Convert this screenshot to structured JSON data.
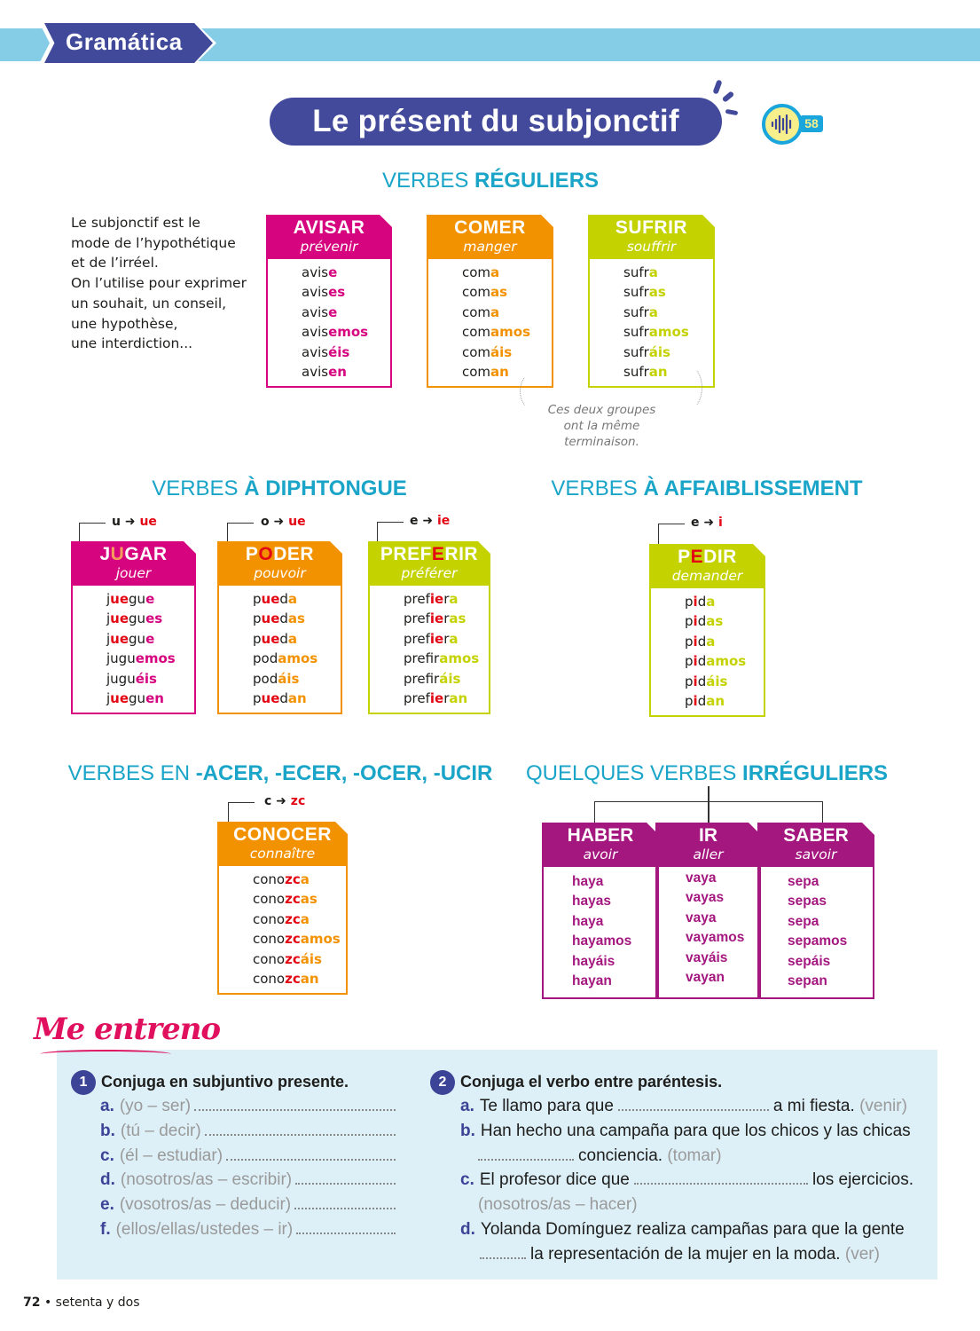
{
  "header": {
    "section_tab": "Gramática",
    "title": "Le présent du subjonctif",
    "audio_track": "58",
    "audio_icon": "audio-wave-icon"
  },
  "colors": {
    "magenta": "#d6047f",
    "orange": "#f39200",
    "lime": "#c4d200",
    "red": "#e30613",
    "purple": "#a3177f",
    "teal": "#1aa5c8",
    "navy": "#434a9b"
  },
  "regular": {
    "heading_light": "VERBES ",
    "heading_bold": "RÉGULIERS",
    "intro": [
      "Le subjonctif est le",
      "mode de l’hypothétique",
      "et de l’irréel.",
      "On l’utilise pour exprimer",
      "un souhait, un conseil,",
      "une hypothèse,",
      "une interdiction..."
    ],
    "note": [
      "Ces deux groupes",
      "ont la même terminaison."
    ],
    "cards": [
      {
        "color": "#d6047f",
        "title": [
          [
            "AVISAR",
            "w"
          ]
        ],
        "translation": "prévenir",
        "forms": [
          [
            [
              "avis",
              "k"
            ],
            [
              "e",
              "c"
            ]
          ],
          [
            [
              "avis",
              "k"
            ],
            [
              "es",
              "c"
            ]
          ],
          [
            [
              "avis",
              "k"
            ],
            [
              "e",
              "c"
            ]
          ],
          [
            [
              "avis",
              "k"
            ],
            [
              "emos",
              "c"
            ]
          ],
          [
            [
              "avis",
              "k"
            ],
            [
              "éis",
              "c"
            ]
          ],
          [
            [
              "avis",
              "k"
            ],
            [
              "en",
              "c"
            ]
          ]
        ]
      },
      {
        "color": "#f39200",
        "title": [
          [
            "COMER",
            "w"
          ]
        ],
        "translation": "manger",
        "forms": [
          [
            [
              "com",
              "k"
            ],
            [
              "a",
              "c"
            ]
          ],
          [
            [
              "com",
              "k"
            ],
            [
              "as",
              "c"
            ]
          ],
          [
            [
              "com",
              "k"
            ],
            [
              "a",
              "c"
            ]
          ],
          [
            [
              "com",
              "k"
            ],
            [
              "amos",
              "c"
            ]
          ],
          [
            [
              "com",
              "k"
            ],
            [
              "áis",
              "c"
            ]
          ],
          [
            [
              "com",
              "k"
            ],
            [
              "an",
              "c"
            ]
          ]
        ]
      },
      {
        "color": "#c4d200",
        "title": [
          [
            "SUFRIR",
            "w"
          ]
        ],
        "translation": "souffrir",
        "forms": [
          [
            [
              "sufr",
              "k"
            ],
            [
              "a",
              "c"
            ]
          ],
          [
            [
              "sufr",
              "k"
            ],
            [
              "as",
              "c"
            ]
          ],
          [
            [
              "sufr",
              "k"
            ],
            [
              "a",
              "c"
            ]
          ],
          [
            [
              "sufr",
              "k"
            ],
            [
              "amos",
              "c"
            ]
          ],
          [
            [
              "sufr",
              "k"
            ],
            [
              "áis",
              "c"
            ]
          ],
          [
            [
              "sufr",
              "k"
            ],
            [
              "an",
              "c"
            ]
          ]
        ]
      }
    ]
  },
  "diphthong": {
    "heading_light": "VERBES ",
    "heading_bold": "À DIPHTONGUE",
    "cards": [
      {
        "color": "#d6047f",
        "rule_from": "u",
        "rule_to": "ue",
        "title": [
          [
            "J",
            "w"
          ],
          [
            "U",
            "o"
          ],
          [
            "GAR",
            "w"
          ]
        ],
        "translation": "jouer",
        "forms": [
          [
            [
              "j",
              "k"
            ],
            [
              "ue",
              "r"
            ],
            [
              "gu",
              "k"
            ],
            [
              "e",
              "c"
            ]
          ],
          [
            [
              "j",
              "k"
            ],
            [
              "ue",
              "r"
            ],
            [
              "gu",
              "k"
            ],
            [
              "es",
              "c"
            ]
          ],
          [
            [
              "j",
              "k"
            ],
            [
              "ue",
              "r"
            ],
            [
              "gu",
              "k"
            ],
            [
              "e",
              "c"
            ]
          ],
          [
            [
              "jugu",
              "k"
            ],
            [
              "emos",
              "c"
            ]
          ],
          [
            [
              "jugu",
              "k"
            ],
            [
              "éis",
              "c"
            ]
          ],
          [
            [
              "j",
              "k"
            ],
            [
              "ue",
              "r"
            ],
            [
              "gu",
              "k"
            ],
            [
              "en",
              "c"
            ]
          ]
        ]
      },
      {
        "color": "#f39200",
        "rule_from": "o",
        "rule_to": "ue",
        "title": [
          [
            "P",
            "w"
          ],
          [
            "O",
            "r"
          ],
          [
            "DER",
            "w"
          ]
        ],
        "translation": "pouvoir",
        "forms": [
          [
            [
              "p",
              "k"
            ],
            [
              "ue",
              "r"
            ],
            [
              "d",
              "k"
            ],
            [
              "a",
              "c"
            ]
          ],
          [
            [
              "p",
              "k"
            ],
            [
              "ue",
              "r"
            ],
            [
              "d",
              "k"
            ],
            [
              "as",
              "c"
            ]
          ],
          [
            [
              "p",
              "k"
            ],
            [
              "ue",
              "r"
            ],
            [
              "d",
              "k"
            ],
            [
              "a",
              "c"
            ]
          ],
          [
            [
              "pod",
              "k"
            ],
            [
              "amos",
              "c"
            ]
          ],
          [
            [
              "pod",
              "k"
            ],
            [
              "áis",
              "c"
            ]
          ],
          [
            [
              "p",
              "k"
            ],
            [
              "ue",
              "r"
            ],
            [
              "d",
              "k"
            ],
            [
              "an",
              "c"
            ]
          ]
        ]
      },
      {
        "color": "#c4d200",
        "rule_from": "e",
        "rule_to": "ie",
        "title": [
          [
            "PREF",
            "w"
          ],
          [
            "E",
            "r"
          ],
          [
            "RIR",
            "w"
          ]
        ],
        "translation": "préférer",
        "forms": [
          [
            [
              "pref",
              "k"
            ],
            [
              "ie",
              "r"
            ],
            [
              "r",
              "k"
            ],
            [
              "a",
              "c"
            ]
          ],
          [
            [
              "pref",
              "k"
            ],
            [
              "ie",
              "r"
            ],
            [
              "r",
              "k"
            ],
            [
              "as",
              "c"
            ]
          ],
          [
            [
              "pref",
              "k"
            ],
            [
              "ie",
              "r"
            ],
            [
              "r",
              "k"
            ],
            [
              "a",
              "c"
            ]
          ],
          [
            [
              "prefir",
              "k"
            ],
            [
              "amos",
              "c"
            ]
          ],
          [
            [
              "prefir",
              "k"
            ],
            [
              "áis",
              "c"
            ]
          ],
          [
            [
              "pref",
              "k"
            ],
            [
              "ie",
              "r"
            ],
            [
              "r",
              "k"
            ],
            [
              "an",
              "c"
            ]
          ]
        ]
      }
    ]
  },
  "weakening": {
    "heading_light": "VERBES ",
    "heading_bold": "À AFFAIBLISSEMENT",
    "cards": [
      {
        "color": "#c4d200",
        "rule_from": "e",
        "rule_to": "i",
        "title": [
          [
            "P",
            "w"
          ],
          [
            "E",
            "r"
          ],
          [
            "DIR",
            "w"
          ]
        ],
        "translation": "demander",
        "forms": [
          [
            [
              "p",
              "k"
            ],
            [
              "i",
              "r"
            ],
            [
              "d",
              "k"
            ],
            [
              "a",
              "c"
            ]
          ],
          [
            [
              "p",
              "k"
            ],
            [
              "i",
              "r"
            ],
            [
              "d",
              "k"
            ],
            [
              "as",
              "c"
            ]
          ],
          [
            [
              "p",
              "k"
            ],
            [
              "i",
              "r"
            ],
            [
              "d",
              "k"
            ],
            [
              "a",
              "c"
            ]
          ],
          [
            [
              "p",
              "k"
            ],
            [
              "i",
              "r"
            ],
            [
              "d",
              "k"
            ],
            [
              "amos",
              "c"
            ]
          ],
          [
            [
              "p",
              "k"
            ],
            [
              "i",
              "r"
            ],
            [
              "d",
              "k"
            ],
            [
              "áis",
              "c"
            ]
          ],
          [
            [
              "p",
              "k"
            ],
            [
              "i",
              "r"
            ],
            [
              "d",
              "k"
            ],
            [
              "an",
              "c"
            ]
          ]
        ]
      }
    ]
  },
  "acer": {
    "heading_light": "VERBES EN ",
    "heading_bold": "-ACER, -ECER, -OCER, -UCIR",
    "cards": [
      {
        "color": "#f39200",
        "rule_from": "c",
        "rule_to": "zc",
        "title": [
          [
            "CONOCER",
            "w"
          ]
        ],
        "translation": "connaître",
        "forms": [
          [
            [
              "cono",
              "k"
            ],
            [
              "zc",
              "r"
            ],
            [
              "a",
              "c"
            ]
          ],
          [
            [
              "cono",
              "k"
            ],
            [
              "zc",
              "r"
            ],
            [
              "as",
              "c"
            ]
          ],
          [
            [
              "cono",
              "k"
            ],
            [
              "zc",
              "r"
            ],
            [
              "a",
              "c"
            ]
          ],
          [
            [
              "cono",
              "k"
            ],
            [
              "zc",
              "r"
            ],
            [
              "amos",
              "c"
            ]
          ],
          [
            [
              "cono",
              "k"
            ],
            [
              "zc",
              "r"
            ],
            [
              "áis",
              "c"
            ]
          ],
          [
            [
              "cono",
              "k"
            ],
            [
              "zc",
              "r"
            ],
            [
              "an",
              "c"
            ]
          ]
        ]
      }
    ]
  },
  "irregular": {
    "heading_light": "QUELQUES VERBES ",
    "heading_bold": "IRRÉGULIERS",
    "columns": [
      {
        "title": "HABER",
        "translation": "avoir",
        "forms": [
          "haya",
          "hayas",
          "haya",
          "hayamos",
          "hayáis",
          "hayan"
        ]
      },
      {
        "title": "IR",
        "translation": "aller",
        "forms": [
          "vaya",
          "vayas",
          "vaya",
          "vayamos",
          "vayáis",
          "vayan"
        ]
      },
      {
        "title": "SABER",
        "translation": "savoir",
        "forms": [
          "sepa",
          "sepas",
          "sepa",
          "sepamos",
          "sepáis",
          "sepan"
        ]
      }
    ]
  },
  "practice": {
    "heading": "Me entreno",
    "ex1": {
      "number": "1",
      "instruction": "Conjuga en subjuntivo presente.",
      "items": [
        {
          "letter": "a.",
          "prompt": "(yo – ser)"
        },
        {
          "letter": "b.",
          "prompt": "(tú – decir)"
        },
        {
          "letter": "c.",
          "prompt": "(él – estudiar)"
        },
        {
          "letter": "d.",
          "prompt": "(nosotros/as – escribir)"
        },
        {
          "letter": "e.",
          "prompt": "(vosotros/as – deducir)"
        },
        {
          "letter": "f.",
          "prompt": "(ellos/ellas/ustedes – ir)"
        }
      ]
    },
    "ex2": {
      "number": "2",
      "instruction": "Conjuga el verbo entre paréntesis.",
      "a": {
        "letter": "a.",
        "before": "Te llamo para que",
        "after": "a mi fiesta.",
        "hint": "(venir)"
      },
      "b": {
        "letter": "b.",
        "line1": "Han hecho una campaña para que los chicos y las chicas",
        "after": "conciencia.",
        "hint": "(tomar)"
      },
      "c": {
        "letter": "c.",
        "before": "El profesor dice que",
        "after": "los ejercicios.",
        "hint": "(nosotros/as – hacer)"
      },
      "d": {
        "letter": "d.",
        "line1": "Yolanda Domínguez realiza campañas para que la gente",
        "after": "la representación de la mujer en la moda.",
        "hint": "(ver)"
      }
    }
  },
  "footer": {
    "page_number": "72",
    "separator": "•",
    "page_words": "setenta y dos"
  }
}
